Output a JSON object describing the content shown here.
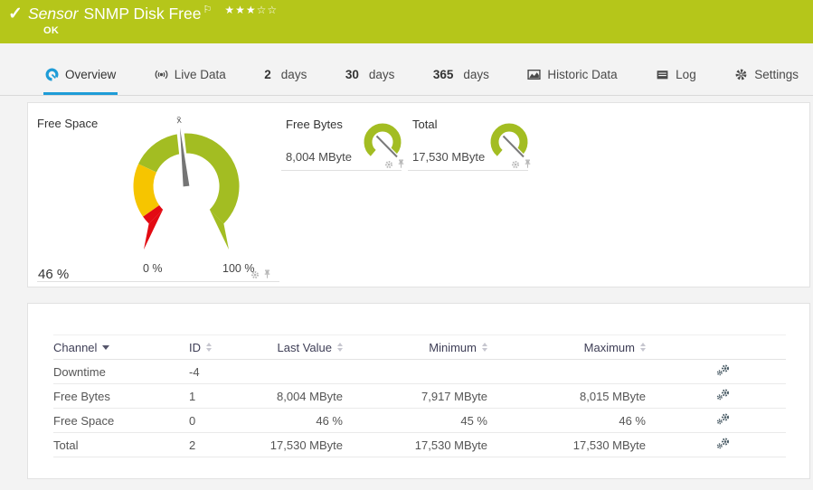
{
  "header": {
    "type_label": "Sensor",
    "name": "SNMP Disk Free",
    "status": "OK",
    "stars_filled": "★★★",
    "stars_empty": "☆☆"
  },
  "tabs": [
    {
      "label": "Overview"
    },
    {
      "label": "Live Data"
    },
    {
      "num": "2",
      "label": "days"
    },
    {
      "num": "30",
      "label": "days"
    },
    {
      "num": "365",
      "label": "days"
    },
    {
      "label": "Historic Data"
    },
    {
      "label": "Log"
    },
    {
      "label": "Settings"
    }
  ],
  "gauge_panel": {
    "main": {
      "title": "Free Space",
      "current": "46 %",
      "scale_min": "0 %",
      "scale_max": "100 %",
      "percent": 46,
      "mean_marker": "x̄"
    },
    "mini": [
      {
        "title": "Free Bytes",
        "value": "8,004 MByte"
      },
      {
        "title": "Total",
        "value": "17,530 MByte"
      }
    ]
  },
  "channels": {
    "headers": {
      "channel": "Channel",
      "id": "ID",
      "last": "Last Value",
      "min": "Minimum",
      "max": "Maximum"
    },
    "rows": [
      {
        "channel": "Downtime",
        "id": "-4",
        "last": "",
        "min": "",
        "max": ""
      },
      {
        "channel": "Free Bytes",
        "id": "1",
        "last": "8,004 MByte",
        "min": "7,917 MByte",
        "max": "8,015 MByte"
      },
      {
        "channel": "Free Space",
        "id": "0",
        "last": "46 %",
        "min": "45 %",
        "max": "46 %"
      },
      {
        "channel": "Total",
        "id": "2",
        "last": "17,530 MByte",
        "min": "17,530 MByte",
        "max": "17,530 MByte"
      }
    ]
  },
  "colors": {
    "status_ok_green": "#b5c61a",
    "gauge_green": "#a3bd22",
    "gauge_yellow": "#f6c500",
    "gauge_red": "#e30b13",
    "accent_blue": "#1e9cd7"
  }
}
